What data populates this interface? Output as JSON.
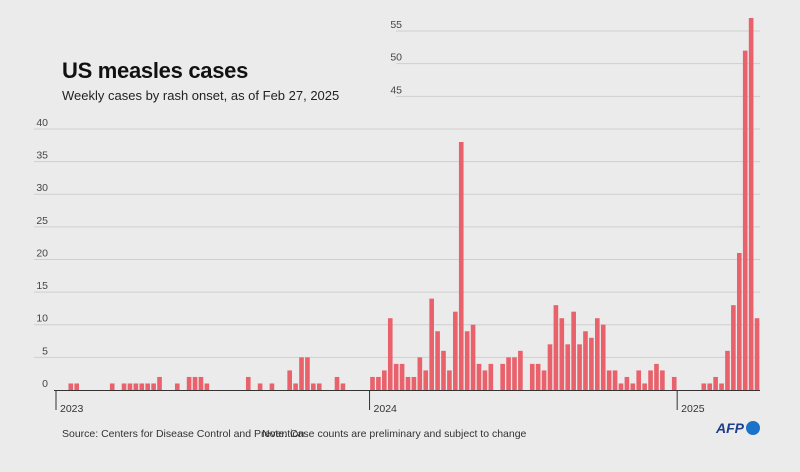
{
  "header": {
    "title": "US measles cases",
    "subtitle": "Weekly cases by rash onset, as of Feb 27, 2025"
  },
  "footer": {
    "source": "Source: Centers for Disease Control and Prevention",
    "note": "Note: Case counts are preliminary and subject to change",
    "logo": "AFP"
  },
  "colors": {
    "bar": "#e8616b",
    "grid": "#cfcfcf",
    "background": "#ebebeb"
  },
  "chart_data": {
    "type": "bar",
    "title": "US measles cases",
    "subtitle": "Weekly cases by rash onset, as of Feb 27, 2025",
    "xlabel": "",
    "ylabel": "",
    "ylim": [
      0,
      57
    ],
    "yticks": [
      0,
      5,
      10,
      15,
      20,
      25,
      30,
      35,
      40,
      45,
      50,
      55
    ],
    "year_labels": [
      {
        "label": "2023",
        "week_index": 0
      },
      {
        "label": "2024",
        "week_index": 53
      },
      {
        "label": "2025",
        "week_index": 105
      }
    ],
    "series": [
      {
        "name": "Weekly cases",
        "values": [
          0,
          0,
          1,
          1,
          0,
          0,
          0,
          0,
          0,
          1,
          0,
          1,
          1,
          1,
          1,
          1,
          1,
          2,
          0,
          0,
          1,
          0,
          2,
          2,
          2,
          1,
          0,
          0,
          0,
          0,
          0,
          0,
          2,
          0,
          1,
          0,
          1,
          0,
          0,
          3,
          1,
          5,
          5,
          1,
          1,
          0,
          0,
          2,
          1,
          0,
          0,
          0,
          0,
          2,
          2,
          3,
          11,
          4,
          4,
          2,
          2,
          5,
          3,
          14,
          9,
          6,
          3,
          12,
          38,
          9,
          10,
          4,
          3,
          4,
          0,
          4,
          5,
          5,
          6,
          0,
          4,
          4,
          3,
          7,
          13,
          11,
          7,
          12,
          7,
          9,
          8,
          11,
          10,
          3,
          3,
          1,
          2,
          1,
          3,
          1,
          3,
          4,
          3,
          0,
          2,
          0,
          0,
          0,
          0,
          1,
          1,
          2,
          1,
          6,
          13,
          21,
          52,
          57,
          11
        ]
      }
    ]
  }
}
